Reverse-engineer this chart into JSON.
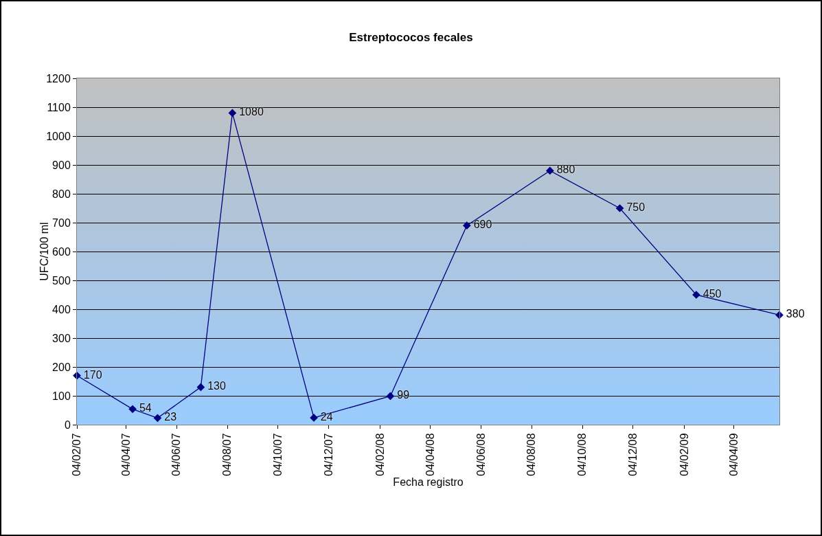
{
  "chart_data": {
    "type": "line",
    "title": "Estreptococos fecales",
    "xlabel": "Fecha registro",
    "ylabel": "UFC/100 ml",
    "x": [
      "2007-02-04",
      "2007-04-12",
      "2007-05-12",
      "2007-07-03",
      "2007-08-10",
      "2007-11-16",
      "2008-02-16",
      "2008-05-18",
      "2008-08-26",
      "2008-11-18",
      "2009-02-18",
      "2009-05-29"
    ],
    "series": [
      {
        "color": "#000080",
        "values": [
          170,
          54,
          23,
          130,
          1080,
          24,
          99,
          690,
          880,
          750,
          450,
          380
        ]
      }
    ],
    "xlim": [
      "2007-02-04",
      "2009-05-29"
    ],
    "xticks": [
      {
        "value": "2007-02-04",
        "label": "04/02/07"
      },
      {
        "value": "2007-04-04",
        "label": "04/04/07"
      },
      {
        "value": "2007-06-04",
        "label": "04/06/07"
      },
      {
        "value": "2007-08-04",
        "label": "04/08/07"
      },
      {
        "value": "2007-10-04",
        "label": "04/10/07"
      },
      {
        "value": "2007-12-04",
        "label": "04/12/07"
      },
      {
        "value": "2008-02-04",
        "label": "04/02/08"
      },
      {
        "value": "2008-04-04",
        "label": "04/04/08"
      },
      {
        "value": "2008-06-04",
        "label": "04/06/08"
      },
      {
        "value": "2008-08-04",
        "label": "04/08/08"
      },
      {
        "value": "2008-10-04",
        "label": "04/10/08"
      },
      {
        "value": "2008-12-04",
        "label": "04/12/08"
      },
      {
        "value": "2009-02-04",
        "label": "04/02/09"
      },
      {
        "value": "2009-04-04",
        "label": "04/04/09"
      }
    ],
    "ylim": [
      0,
      1200
    ],
    "yticks": [
      0,
      100,
      200,
      300,
      400,
      500,
      600,
      700,
      800,
      900,
      1000,
      1100,
      1200
    ],
    "grid": "y",
    "marker": "diamond",
    "line_style": "solid",
    "data_labels": true
  }
}
